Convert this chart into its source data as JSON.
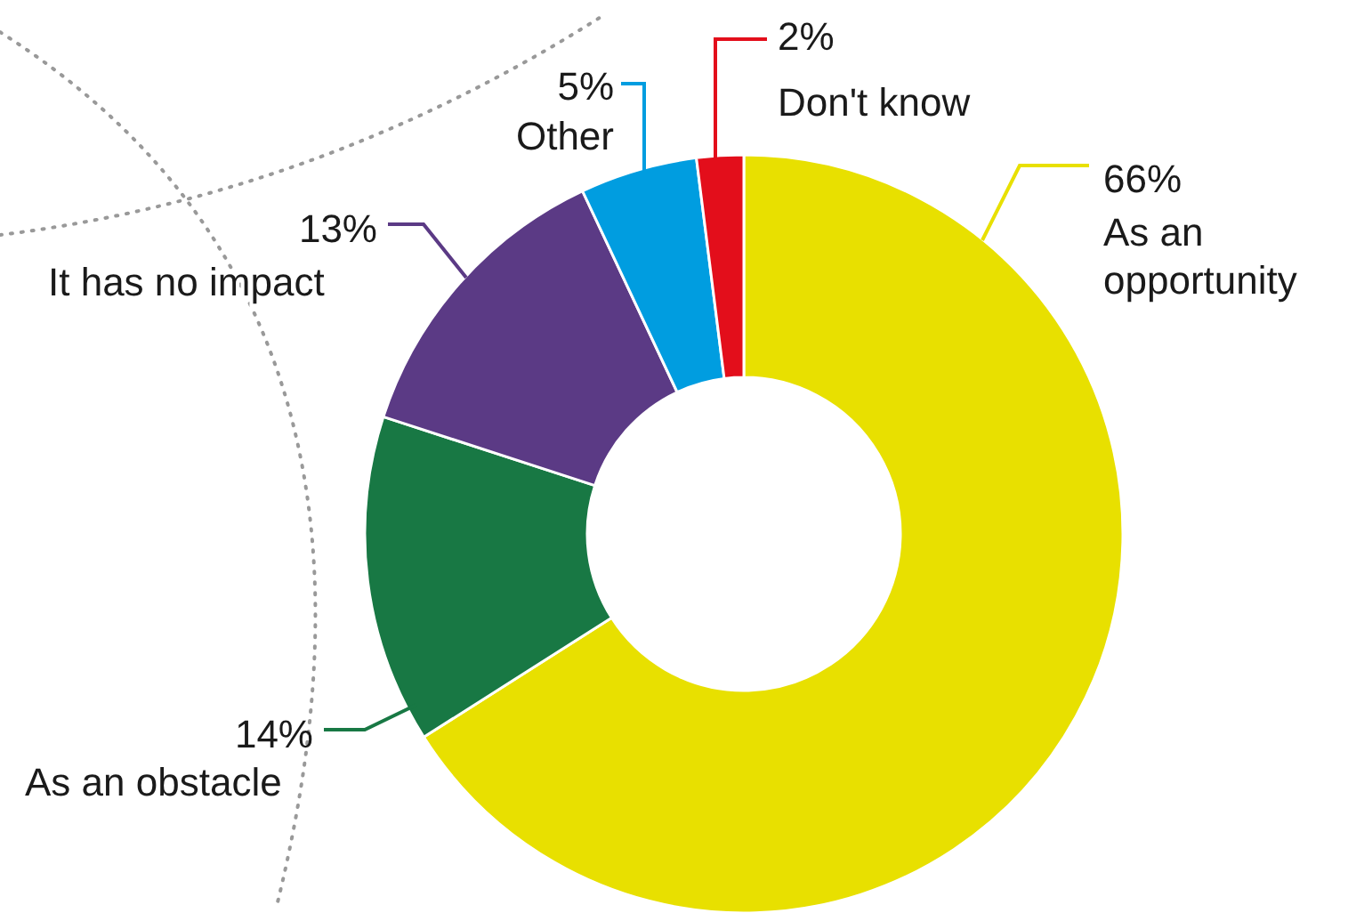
{
  "chart_data": {
    "type": "donut",
    "categories": [
      "As an opportunity",
      "As an obstacle",
      "It has no impact",
      "Other",
      "Don't know"
    ],
    "values": [
      66,
      14,
      13,
      5,
      2
    ],
    "colors": [
      "#e8e000",
      "#187844",
      "#5b3a85",
      "#009de0",
      "#e30e1b"
    ],
    "value_labels": [
      "66%",
      "14%",
      "13%",
      "5%",
      "2%"
    ]
  }
}
